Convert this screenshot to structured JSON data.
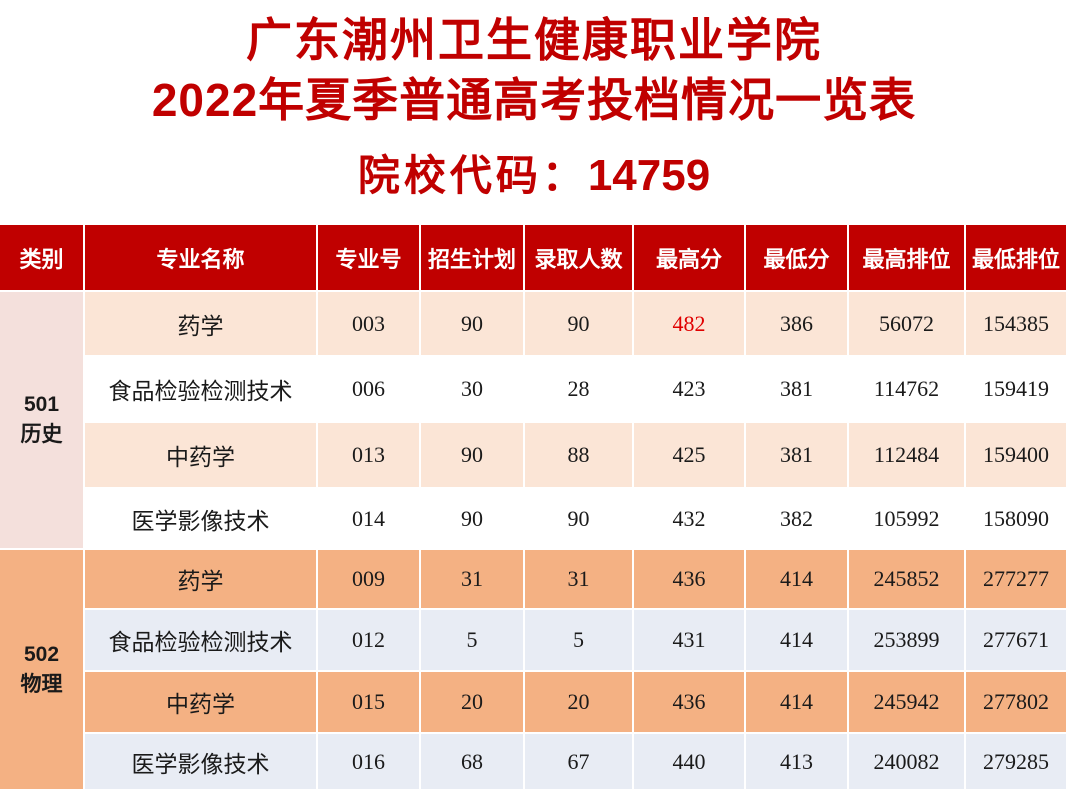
{
  "title": {
    "line1": "广东潮州卫生健康职业学院",
    "line2": "2022年夏季普通高考投档情况一览表",
    "code_label": "院校代码：",
    "code_value": "14759",
    "color": "#c00000"
  },
  "table": {
    "headers": [
      "类别",
      "专业名称",
      "专业号",
      "招生计划",
      "录取人数",
      "最高分",
      "最低分",
      "最高排位",
      "最低排位"
    ],
    "header_bg": "#c00000",
    "highlight_color": "#e00000",
    "groups": [
      {
        "code": "501",
        "subject": "历史",
        "label_bg": "#f4e0dc",
        "row_colors": [
          "#fbe5d6",
          "#ffffff"
        ],
        "rows": [
          {
            "name": "药学",
            "major_no": "003",
            "plan": 90,
            "admitted": 90,
            "max_score": 482,
            "min_score": 386,
            "max_rank": 56072,
            "min_rank": 154385,
            "highlight_max": true
          },
          {
            "name": "食品检验检测技术",
            "major_no": "006",
            "plan": 30,
            "admitted": 28,
            "max_score": 423,
            "min_score": 381,
            "max_rank": 114762,
            "min_rank": 159419
          },
          {
            "name": "中药学",
            "major_no": "013",
            "plan": 90,
            "admitted": 88,
            "max_score": 425,
            "min_score": 381,
            "max_rank": 112484,
            "min_rank": 159400
          },
          {
            "name": "医学影像技术",
            "major_no": "014",
            "plan": 90,
            "admitted": 90,
            "max_score": 432,
            "min_score": 382,
            "max_rank": 105992,
            "min_rank": 158090
          }
        ]
      },
      {
        "code": "502",
        "subject": "物理",
        "label_bg": "#f4b183",
        "row_colors": [
          "#f4b183",
          "#e8ecf4"
        ],
        "rows": [
          {
            "name": "药学",
            "major_no": "009",
            "plan": 31,
            "admitted": 31,
            "max_score": 436,
            "min_score": 414,
            "max_rank": 245852,
            "min_rank": 277277
          },
          {
            "name": "食品检验检测技术",
            "major_no": "012",
            "plan": 5,
            "admitted": 5,
            "max_score": 431,
            "min_score": 414,
            "max_rank": 253899,
            "min_rank": 277671
          },
          {
            "name": "中药学",
            "major_no": "015",
            "plan": 20,
            "admitted": 20,
            "max_score": 436,
            "min_score": 414,
            "max_rank": 245942,
            "min_rank": 277802
          },
          {
            "name": "医学影像技术",
            "major_no": "016",
            "plan": 68,
            "admitted": 67,
            "max_score": 440,
            "min_score": 413,
            "max_rank": 240082,
            "min_rank": 279285
          }
        ]
      }
    ]
  }
}
